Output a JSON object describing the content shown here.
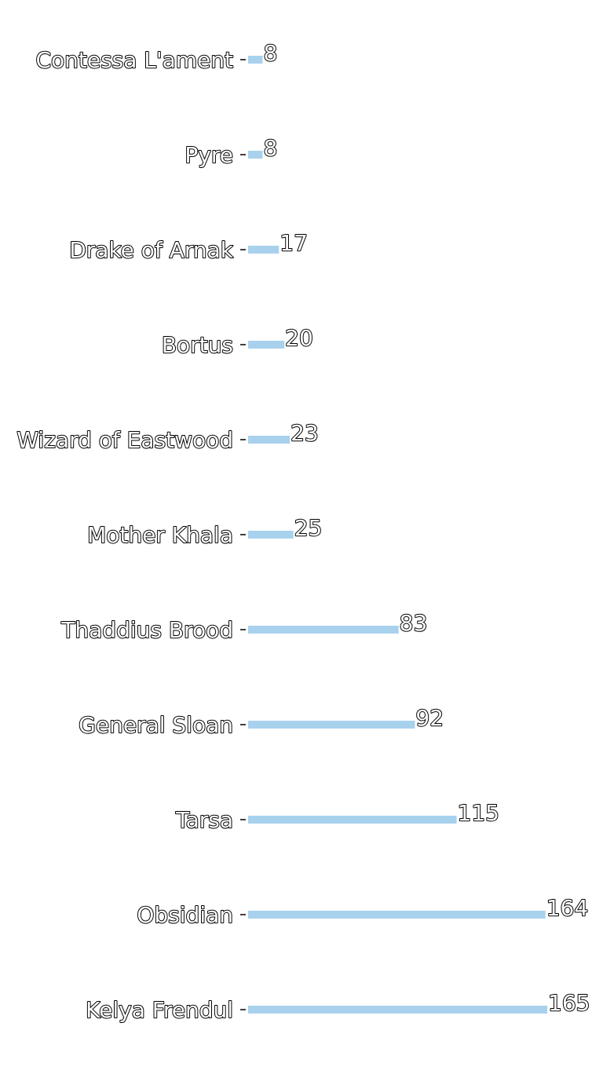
{
  "chart_data": {
    "type": "bar",
    "orientation": "horizontal",
    "title": "",
    "xlabel": "",
    "ylabel": "",
    "categories": [
      "Contessa L'ament",
      "Pyre",
      "Drake of Arnak",
      "Bortus",
      "Wizard of Eastwood",
      "Mother Khala",
      "Thaddius Brood",
      "General Sloan",
      "Tarsa",
      "Obsidian",
      "Kelya Frendul"
    ],
    "values": [
      8,
      8,
      17,
      20,
      23,
      25,
      83,
      92,
      115,
      164,
      165
    ],
    "xlim": [
      0,
      165
    ],
    "bar_color": "#a8d1ee",
    "grid": false,
    "legend": "none",
    "axes_visible": false,
    "value_labels": true
  }
}
